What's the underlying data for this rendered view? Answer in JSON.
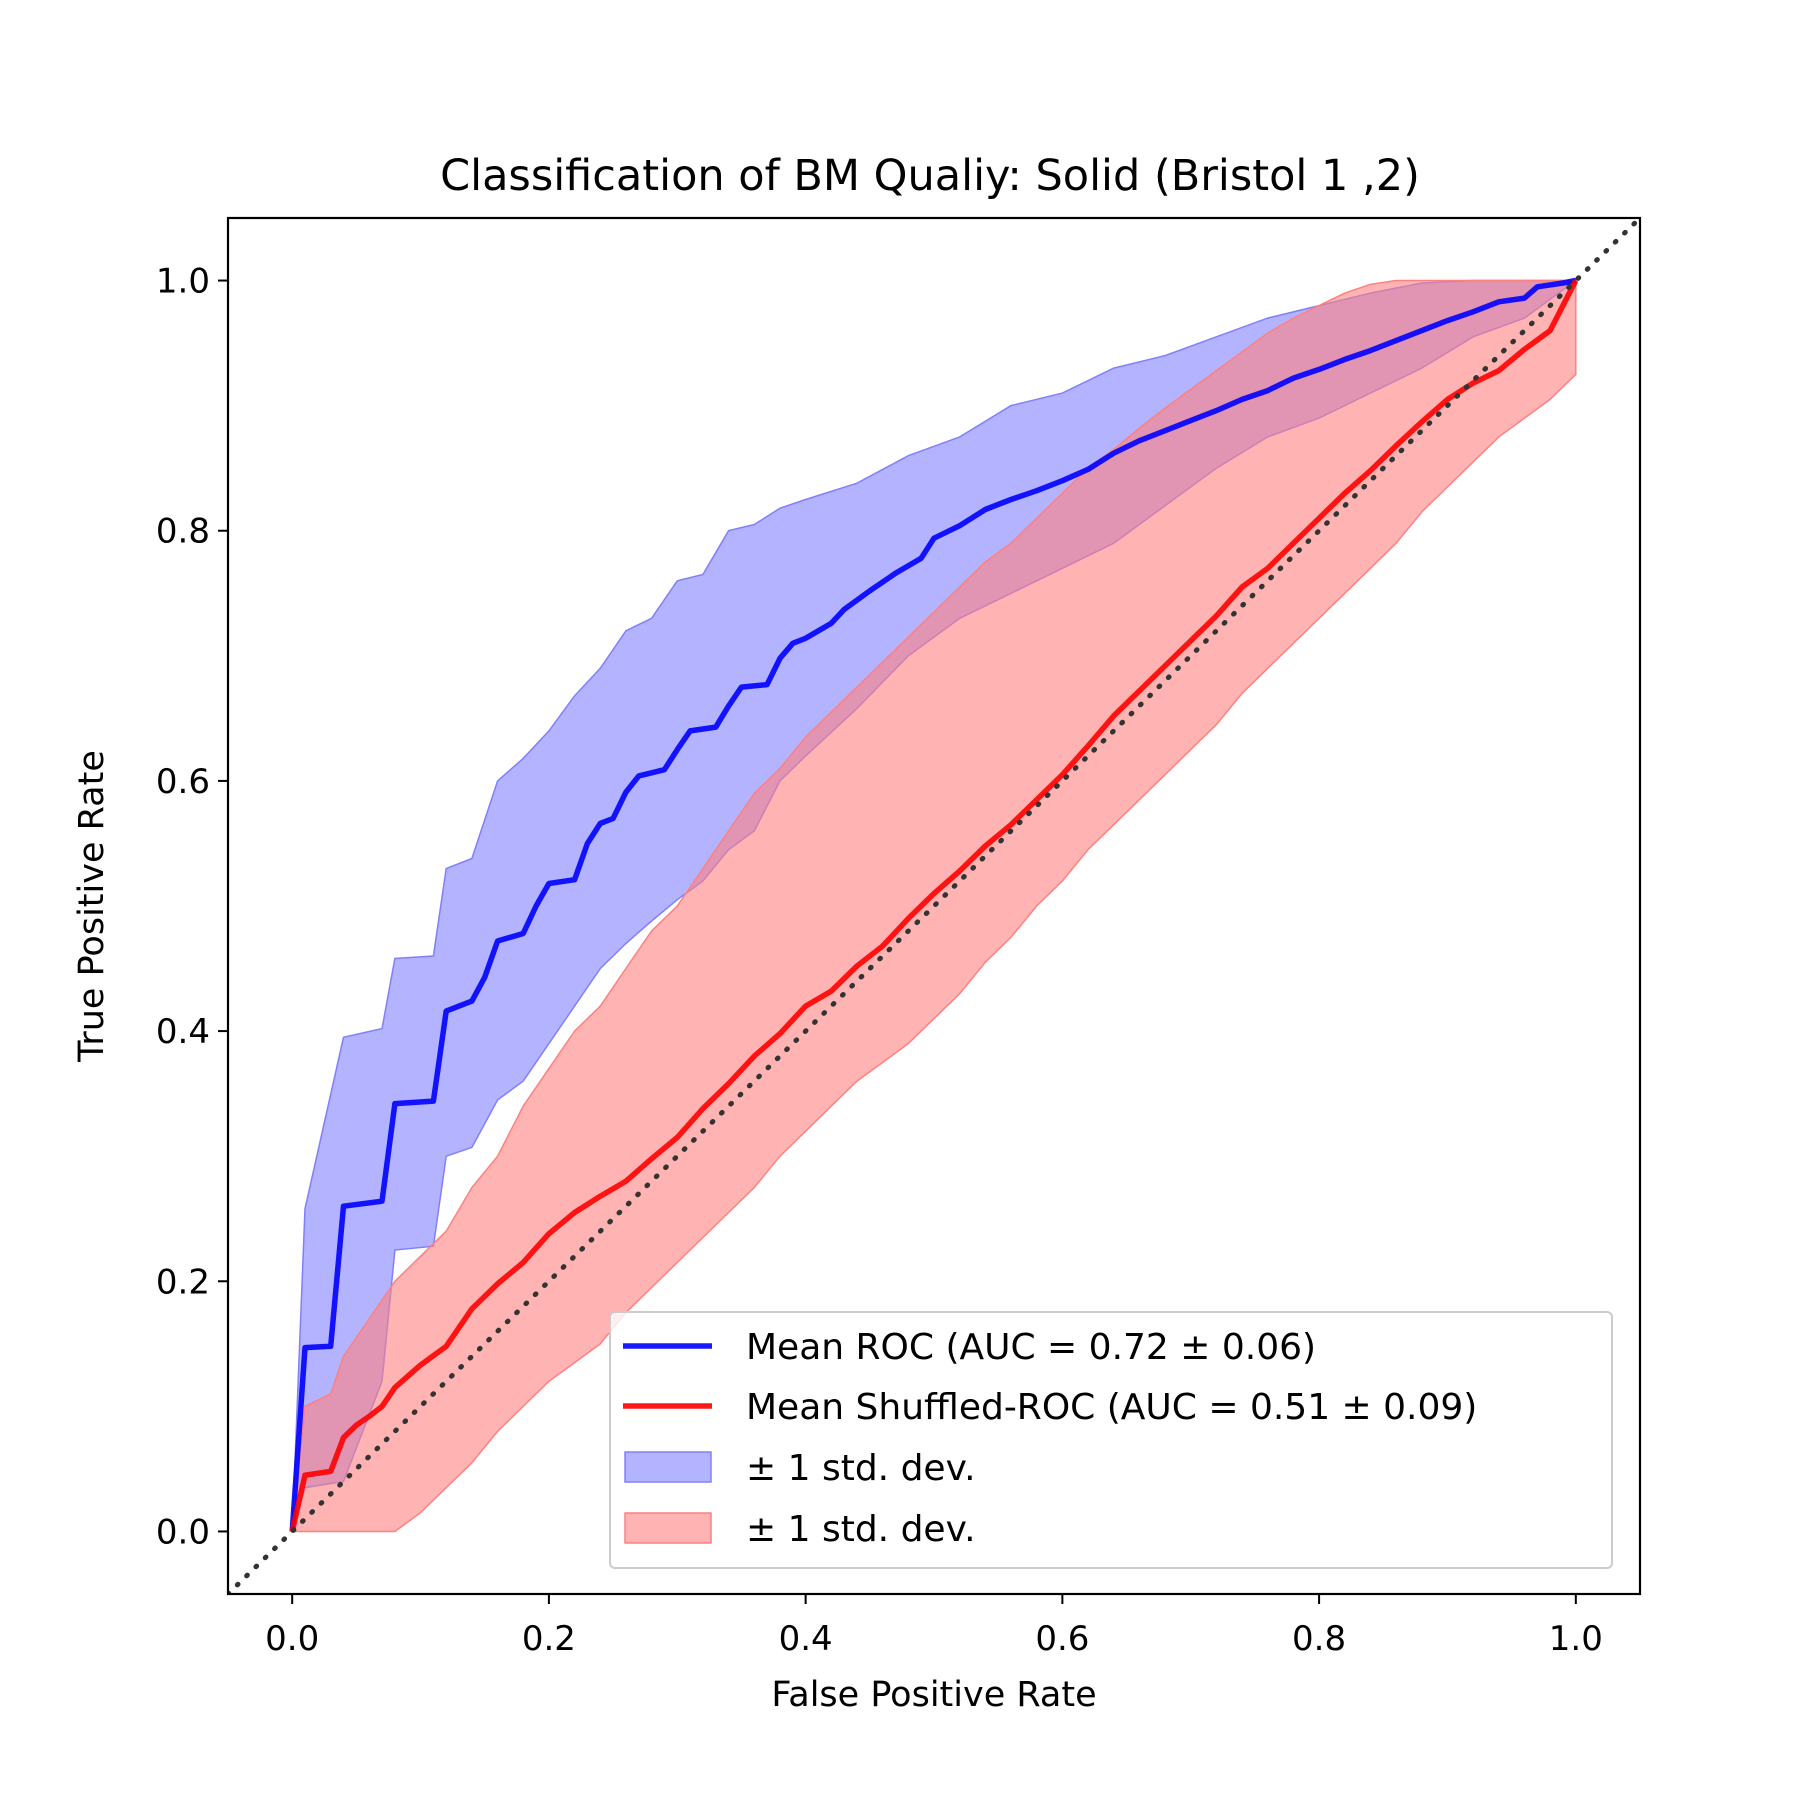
{
  "chart_data": {
    "type": "line",
    "title": "Classification of BM Qualiy: Solid (Bristol 1 ,2)",
    "xlabel": "False Positive Rate",
    "ylabel": "True Positive Rate",
    "xlim": [
      -0.05,
      1.05
    ],
    "ylim": [
      -0.05,
      1.05
    ],
    "xticks": [
      0.0,
      0.2,
      0.4,
      0.6,
      0.8,
      1.0
    ],
    "yticks": [
      0.0,
      0.2,
      0.4,
      0.6,
      0.8,
      1.0
    ],
    "xtick_labels": [
      "0.0",
      "0.2",
      "0.4",
      "0.6",
      "0.8",
      "1.0"
    ],
    "ytick_labels": [
      "0.0",
      "0.2",
      "0.4",
      "0.6",
      "0.8",
      "1.0"
    ],
    "grid": false,
    "legend_position": "lower-right",
    "colors": {
      "roc": "#0000ff",
      "roc_band": "#8080ff",
      "shuffled": "#ff0000",
      "shuffled_band": "#ff8080",
      "chance": "#333333"
    },
    "series": [
      {
        "key": "roc",
        "name": "Mean ROC (AUC = 0.72 ± 0.06)",
        "x": [
          0.0,
          0.01,
          0.03,
          0.04,
          0.07,
          0.08,
          0.11,
          0.12,
          0.14,
          0.15,
          0.16,
          0.18,
          0.19,
          0.2,
          0.22,
          0.23,
          0.24,
          0.25,
          0.26,
          0.27,
          0.29,
          0.3,
          0.31,
          0.33,
          0.34,
          0.35,
          0.37,
          0.38,
          0.39,
          0.4,
          0.42,
          0.43,
          0.45,
          0.47,
          0.49,
          0.5,
          0.52,
          0.54,
          0.56,
          0.58,
          0.6,
          0.62,
          0.64,
          0.66,
          0.68,
          0.7,
          0.72,
          0.74,
          0.76,
          0.78,
          0.8,
          0.82,
          0.84,
          0.86,
          0.88,
          0.9,
          0.92,
          0.94,
          0.96,
          0.97,
          0.99,
          1.0
        ],
        "y": [
          0.0,
          0.147,
          0.148,
          0.26,
          0.264,
          0.342,
          0.344,
          0.416,
          0.424,
          0.443,
          0.472,
          0.478,
          0.5,
          0.518,
          0.521,
          0.55,
          0.566,
          0.57,
          0.591,
          0.604,
          0.609,
          0.625,
          0.64,
          0.643,
          0.66,
          0.675,
          0.677,
          0.698,
          0.71,
          0.714,
          0.726,
          0.737,
          0.752,
          0.766,
          0.778,
          0.794,
          0.804,
          0.817,
          0.825,
          0.832,
          0.84,
          0.849,
          0.862,
          0.872,
          0.88,
          0.888,
          0.896,
          0.905,
          0.912,
          0.922,
          0.929,
          0.937,
          0.944,
          0.952,
          0.96,
          0.968,
          0.975,
          0.983,
          0.986,
          0.995,
          0.998,
          1.0
        ]
      },
      {
        "key": "shuffled",
        "name": "Mean Shuffled-ROC (AUC = 0.51 ± 0.09)",
        "x": [
          0.0,
          0.01,
          0.03,
          0.04,
          0.05,
          0.06,
          0.07,
          0.08,
          0.1,
          0.12,
          0.14,
          0.16,
          0.18,
          0.2,
          0.22,
          0.24,
          0.26,
          0.28,
          0.3,
          0.32,
          0.34,
          0.36,
          0.38,
          0.4,
          0.42,
          0.44,
          0.46,
          0.48,
          0.5,
          0.52,
          0.54,
          0.56,
          0.58,
          0.6,
          0.62,
          0.64,
          0.66,
          0.68,
          0.7,
          0.72,
          0.74,
          0.76,
          0.78,
          0.8,
          0.82,
          0.84,
          0.86,
          0.88,
          0.9,
          0.92,
          0.94,
          0.96,
          0.98,
          1.0
        ],
        "y": [
          0.0,
          0.045,
          0.048,
          0.075,
          0.085,
          0.092,
          0.1,
          0.115,
          0.133,
          0.148,
          0.178,
          0.198,
          0.215,
          0.238,
          0.255,
          0.268,
          0.28,
          0.298,
          0.315,
          0.338,
          0.358,
          0.38,
          0.398,
          0.42,
          0.432,
          0.452,
          0.468,
          0.49,
          0.51,
          0.528,
          0.548,
          0.565,
          0.585,
          0.605,
          0.628,
          0.652,
          0.672,
          0.692,
          0.712,
          0.732,
          0.755,
          0.77,
          0.79,
          0.81,
          0.83,
          0.848,
          0.868,
          0.887,
          0.905,
          0.918,
          0.928,
          0.945,
          0.96,
          1.0
        ]
      }
    ],
    "bands": [
      {
        "key": "roc_band",
        "name": "± 1 std. dev.",
        "x": [
          0.0,
          0.01,
          0.04,
          0.07,
          0.08,
          0.11,
          0.12,
          0.14,
          0.16,
          0.18,
          0.2,
          0.22,
          0.24,
          0.26,
          0.28,
          0.3,
          0.32,
          0.34,
          0.36,
          0.38,
          0.4,
          0.44,
          0.48,
          0.52,
          0.56,
          0.6,
          0.64,
          0.68,
          0.72,
          0.76,
          0.8,
          0.84,
          0.88,
          0.92,
          0.96,
          1.0
        ],
        "upper": [
          0.0,
          0.258,
          0.395,
          0.402,
          0.458,
          0.46,
          0.53,
          0.538,
          0.6,
          0.618,
          0.64,
          0.668,
          0.69,
          0.72,
          0.73,
          0.76,
          0.765,
          0.8,
          0.805,
          0.818,
          0.825,
          0.838,
          0.86,
          0.875,
          0.9,
          0.91,
          0.93,
          0.94,
          0.955,
          0.97,
          0.98,
          0.99,
          0.998,
          1.0,
          1.0,
          1.0
        ],
        "lower": [
          0.0,
          0.035,
          0.04,
          0.12,
          0.225,
          0.228,
          0.3,
          0.307,
          0.345,
          0.36,
          0.39,
          0.42,
          0.45,
          0.47,
          0.488,
          0.505,
          0.52,
          0.545,
          0.56,
          0.6,
          0.62,
          0.658,
          0.7,
          0.73,
          0.75,
          0.77,
          0.79,
          0.82,
          0.85,
          0.875,
          0.89,
          0.91,
          0.93,
          0.955,
          0.97,
          1.0
        ]
      },
      {
        "key": "shuffled_band",
        "name": "± 1 std. dev.",
        "x": [
          0.0,
          0.01,
          0.03,
          0.04,
          0.06,
          0.08,
          0.1,
          0.12,
          0.14,
          0.16,
          0.18,
          0.2,
          0.22,
          0.24,
          0.26,
          0.28,
          0.3,
          0.32,
          0.34,
          0.36,
          0.38,
          0.4,
          0.42,
          0.44,
          0.46,
          0.48,
          0.5,
          0.52,
          0.54,
          0.56,
          0.58,
          0.6,
          0.62,
          0.64,
          0.66,
          0.68,
          0.7,
          0.72,
          0.74,
          0.76,
          0.78,
          0.8,
          0.82,
          0.84,
          0.86,
          0.88,
          0.9,
          0.92,
          0.94,
          0.96,
          0.98,
          1.0
        ],
        "upper": [
          0.0,
          0.1,
          0.11,
          0.14,
          0.17,
          0.2,
          0.22,
          0.24,
          0.275,
          0.3,
          0.34,
          0.37,
          0.4,
          0.42,
          0.45,
          0.48,
          0.5,
          0.53,
          0.56,
          0.59,
          0.61,
          0.635,
          0.655,
          0.675,
          0.695,
          0.715,
          0.735,
          0.755,
          0.775,
          0.79,
          0.81,
          0.83,
          0.85,
          0.865,
          0.882,
          0.898,
          0.913,
          0.928,
          0.943,
          0.958,
          0.97,
          0.98,
          0.99,
          0.997,
          1.0,
          1.0,
          1.0,
          1.0,
          1.0,
          1.0,
          1.0,
          1.0
        ],
        "lower": [
          0.0,
          0.0,
          0.0,
          0.0,
          0.0,
          0.0,
          0.015,
          0.035,
          0.055,
          0.08,
          0.1,
          0.12,
          0.135,
          0.15,
          0.175,
          0.195,
          0.215,
          0.235,
          0.255,
          0.275,
          0.3,
          0.32,
          0.34,
          0.36,
          0.375,
          0.39,
          0.41,
          0.43,
          0.455,
          0.475,
          0.5,
          0.52,
          0.545,
          0.565,
          0.585,
          0.605,
          0.625,
          0.645,
          0.67,
          0.69,
          0.71,
          0.73,
          0.75,
          0.77,
          0.79,
          0.815,
          0.835,
          0.855,
          0.875,
          0.89,
          0.905,
          0.925
        ]
      }
    ],
    "reference_line": {
      "x": [
        -0.05,
        1.05
      ],
      "y": [
        -0.05,
        1.05
      ]
    },
    "legend": [
      {
        "key": "roc",
        "kind": "line",
        "label": "Mean ROC (AUC = 0.72 ± 0.06)"
      },
      {
        "key": "shuffled",
        "kind": "line",
        "label": "Mean Shuffled-ROC (AUC = 0.51 ± 0.09)"
      },
      {
        "key": "roc_band",
        "kind": "patch",
        "label": "± 1 std. dev."
      },
      {
        "key": "shuffled_band",
        "kind": "patch",
        "label": "± 1 std. dev."
      }
    ]
  }
}
